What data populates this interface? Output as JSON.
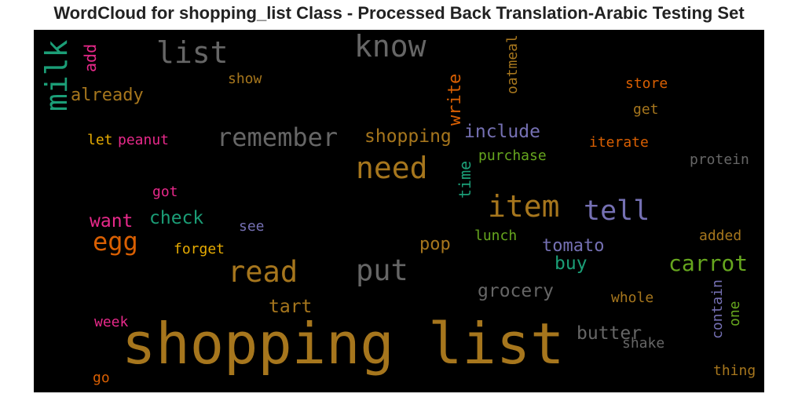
{
  "chart_data": {
    "type": "wordcloud",
    "title": "WordCloud for shopping_list Class - Processed Back Translation-Arabic Testing Set",
    "background": "#000000",
    "words": [
      {
        "text": "shopping list",
        "color": "#a6761d",
        "vertical": false
      },
      {
        "text": "know",
        "color": "#666666",
        "vertical": false
      },
      {
        "text": "list",
        "color": "#666666",
        "vertical": false
      },
      {
        "text": "milk",
        "color": "#1b9e77",
        "vertical": true
      },
      {
        "text": "add",
        "color": "#e7298a",
        "vertical": true
      },
      {
        "text": "already",
        "color": "#a6761d",
        "vertical": false
      },
      {
        "text": "show",
        "color": "#a6761d",
        "vertical": false
      },
      {
        "text": "oatmeal",
        "color": "#a6761d",
        "vertical": true
      },
      {
        "text": "write",
        "color": "#d95f02",
        "vertical": true
      },
      {
        "text": "store",
        "color": "#d95f02",
        "vertical": false
      },
      {
        "text": "get",
        "color": "#a6761d",
        "vertical": false
      },
      {
        "text": "remember",
        "color": "#666666",
        "vertical": false
      },
      {
        "text": "shopping",
        "color": "#a6761d",
        "vertical": false
      },
      {
        "text": "include",
        "color": "#7570b3",
        "vertical": false
      },
      {
        "text": "let",
        "color": "#e6ab02",
        "vertical": false
      },
      {
        "text": "peanut",
        "color": "#e7298a",
        "vertical": false
      },
      {
        "text": "iterate",
        "color": "#d95f02",
        "vertical": false
      },
      {
        "text": "need",
        "color": "#a6761d",
        "vertical": false
      },
      {
        "text": "time",
        "color": "#1b9e77",
        "vertical": true
      },
      {
        "text": "purchase",
        "color": "#66a61e",
        "vertical": false
      },
      {
        "text": "protein",
        "color": "#666666",
        "vertical": false
      },
      {
        "text": "got",
        "color": "#e7298a",
        "vertical": false
      },
      {
        "text": "item",
        "color": "#a6761d",
        "vertical": false
      },
      {
        "text": "tell",
        "color": "#7570b3",
        "vertical": false
      },
      {
        "text": "want",
        "color": "#e7298a",
        "vertical": false
      },
      {
        "text": "check",
        "color": "#1b9e77",
        "vertical": false
      },
      {
        "text": "see",
        "color": "#7570b3",
        "vertical": false
      },
      {
        "text": "egg",
        "color": "#d95f02",
        "vertical": false
      },
      {
        "text": "forget",
        "color": "#e6ab02",
        "vertical": false
      },
      {
        "text": "pop",
        "color": "#a6761d",
        "vertical": false
      },
      {
        "text": "lunch",
        "color": "#66a61e",
        "vertical": false
      },
      {
        "text": "tomato",
        "color": "#7570b3",
        "vertical": false
      },
      {
        "text": "added",
        "color": "#a6761d",
        "vertical": false
      },
      {
        "text": "read",
        "color": "#a6761d",
        "vertical": false
      },
      {
        "text": "put",
        "color": "#666666",
        "vertical": false
      },
      {
        "text": "buy",
        "color": "#1b9e77",
        "vertical": false
      },
      {
        "text": "carrot",
        "color": "#66a61e",
        "vertical": false
      },
      {
        "text": "grocery",
        "color": "#666666",
        "vertical": false
      },
      {
        "text": "tart",
        "color": "#a6761d",
        "vertical": false
      },
      {
        "text": "whole",
        "color": "#a6761d",
        "vertical": false
      },
      {
        "text": "contain",
        "color": "#7570b3",
        "vertical": true
      },
      {
        "text": "one",
        "color": "#66a61e",
        "vertical": true
      },
      {
        "text": "week",
        "color": "#e7298a",
        "vertical": false
      },
      {
        "text": "butter",
        "color": "#666666",
        "vertical": false
      },
      {
        "text": "shake",
        "color": "#666666",
        "vertical": false
      },
      {
        "text": "thing",
        "color": "#a6761d",
        "vertical": false
      },
      {
        "text": "go",
        "color": "#d95f02",
        "vertical": false
      }
    ]
  }
}
